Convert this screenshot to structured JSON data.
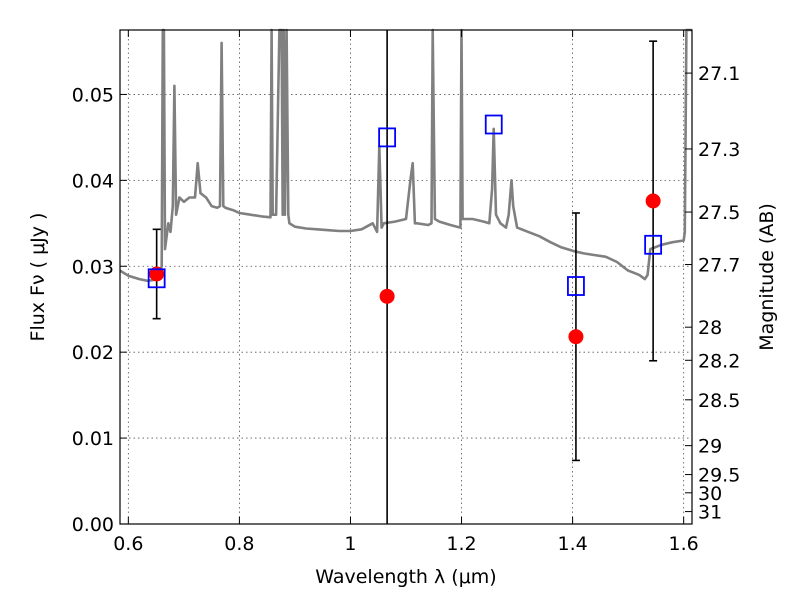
{
  "chart_data": {
    "type": "scatter",
    "title": "",
    "xlabel": "Wavelength  λ (μm)",
    "ylabel": "Flux  Fν  ( μJy )",
    "ylabel_right": "Magnitude (AB)",
    "xlim": [
      0.585,
      1.615
    ],
    "ylim": [
      0.0,
      0.0575
    ],
    "grid": true,
    "x_ticks": [
      0.6,
      0.8,
      1.0,
      1.2,
      1.4,
      1.6
    ],
    "x_tick_labels": [
      "0.6",
      "0.8",
      "1",
      "1.2",
      "1.4",
      "1.6"
    ],
    "y_ticks": [
      0.0,
      0.01,
      0.02,
      0.03,
      0.04,
      0.05
    ],
    "y_tick_labels": [
      "0.00",
      "0.01",
      "0.02",
      "0.03",
      "0.04",
      "0.05"
    ],
    "right_ticks": [
      27.1,
      27.3,
      27.5,
      27.7,
      28,
      28.2,
      28.5,
      29,
      29.5,
      30,
      31
    ],
    "right_tick_labels": [
      "27.1",
      "27.3",
      "27.5",
      "27.7",
      "28",
      "28.2",
      "28.5",
      "29",
      "29.5",
      "30",
      "31"
    ],
    "observed": {
      "color": "#ff0000",
      "points": [
        {
          "x": 0.651,
          "y": 0.0291
        },
        {
          "x": 1.066,
          "y": 0.0265
        },
        {
          "x": 1.406,
          "y": 0.0218
        },
        {
          "x": 1.545,
          "y": 0.0376
        }
      ]
    },
    "errorbars": [
      {
        "x": 0.651,
        "low": 0.0239,
        "high": 0.0343
      },
      {
        "x": 1.066,
        "low": 0.0,
        "high": 0.0575
      },
      {
        "x": 1.406,
        "low": 0.0074,
        "high": 0.0362
      },
      {
        "x": 1.545,
        "low": 0.019,
        "high": 0.0562
      }
    ],
    "model_photometry": {
      "color": "#0000ff",
      "points": [
        {
          "x": 0.651,
          "y": 0.0286
        },
        {
          "x": 1.066,
          "y": 0.045
        },
        {
          "x": 1.258,
          "y": 0.0465
        },
        {
          "x": 1.406,
          "y": 0.0277
        },
        {
          "x": 1.545,
          "y": 0.0325
        }
      ]
    },
    "spectrum": {
      "color": "#808080",
      "x": [
        0.585,
        0.6,
        0.62,
        0.635,
        0.645,
        0.652,
        0.66,
        0.662,
        0.664,
        0.666,
        0.668,
        0.672,
        0.676,
        0.68,
        0.683,
        0.686,
        0.689,
        0.692,
        0.7,
        0.71,
        0.72,
        0.725,
        0.73,
        0.74,
        0.75,
        0.76,
        0.765,
        0.768,
        0.771,
        0.775,
        0.78,
        0.79,
        0.8,
        0.82,
        0.84,
        0.856,
        0.858,
        0.86,
        0.866,
        0.872,
        0.876,
        0.878,
        0.88,
        0.882,
        0.885,
        0.888,
        0.89,
        0.895,
        0.9,
        0.92,
        0.94,
        0.96,
        0.98,
        1.0,
        1.02,
        1.04,
        1.048,
        1.052,
        1.056,
        1.06,
        1.08,
        1.1,
        1.108,
        1.112,
        1.116,
        1.12,
        1.14,
        1.146,
        1.148,
        1.152,
        1.16,
        1.18,
        1.198,
        1.2,
        1.202,
        1.22,
        1.24,
        1.25,
        1.255,
        1.258,
        1.262,
        1.27,
        1.28,
        1.285,
        1.29,
        1.293,
        1.3,
        1.32,
        1.34,
        1.36,
        1.38,
        1.4,
        1.42,
        1.44,
        1.46,
        1.48,
        1.5,
        1.52,
        1.53,
        1.535,
        1.54,
        1.56,
        1.58,
        1.6,
        1.602,
        1.605,
        1.615
      ],
      "y": [
        0.0295,
        0.0289,
        0.0285,
        0.0283,
        0.0284,
        0.0286,
        0.03,
        0.0575,
        0.0575,
        0.032,
        0.033,
        0.035,
        0.034,
        0.037,
        0.051,
        0.036,
        0.037,
        0.038,
        0.0375,
        0.038,
        0.038,
        0.042,
        0.0385,
        0.038,
        0.037,
        0.0368,
        0.037,
        0.056,
        0.037,
        0.0368,
        0.0367,
        0.0365,
        0.0362,
        0.036,
        0.0358,
        0.0357,
        0.0575,
        0.036,
        0.036,
        0.0575,
        0.0575,
        0.036,
        0.0575,
        0.036,
        0.0575,
        0.036,
        0.035,
        0.0348,
        0.0346,
        0.0344,
        0.0343,
        0.0342,
        0.0341,
        0.0341,
        0.0343,
        0.035,
        0.034,
        0.044,
        0.0345,
        0.035,
        0.0352,
        0.0355,
        0.04,
        0.042,
        0.035,
        0.035,
        0.0348,
        0.035,
        0.0575,
        0.0355,
        0.0352,
        0.0348,
        0.0345,
        0.0575,
        0.0355,
        0.0355,
        0.0352,
        0.035,
        0.039,
        0.046,
        0.036,
        0.035,
        0.0345,
        0.036,
        0.04,
        0.037,
        0.0345,
        0.034,
        0.0335,
        0.0328,
        0.0322,
        0.0318,
        0.0315,
        0.0313,
        0.0311,
        0.0305,
        0.0295,
        0.029,
        0.0285,
        0.029,
        0.032,
        0.0325,
        0.0328,
        0.033,
        0.034,
        0.0575,
        0.0575
      ]
    }
  }
}
